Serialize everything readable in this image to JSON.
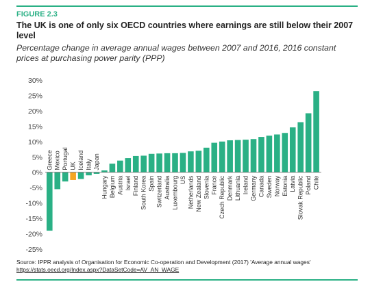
{
  "figure": {
    "label": "FIGURE 2.3",
    "title": "The UK is one of only six OECD countries where earnings are still below their 2007 level",
    "subtitle": "Percentage change in average annual wages between 2007 and 2016, 2016 constant prices at purchasing power parity (PPP)",
    "source": "Source: IPPR analysis of Organisation for Economic Co-operation and Development (2017) 'Average annual wages'",
    "source_link": "https://stats.oecd.org/Index.aspx?DataSetCode=AV_AN_WAGE"
  },
  "colors": {
    "accent": "#2ab085",
    "highlight": "#f5a623",
    "axis": "#555555"
  },
  "chart_data": {
    "type": "bar",
    "categories": [
      "Greece",
      "Mexico",
      "Portugal",
      "UK",
      "Iceland",
      "Italy",
      "Japan",
      "Hungary",
      "Belgium",
      "Austria",
      "Israel",
      "Finland",
      "South Korea",
      "Spain",
      "Switzerland",
      "Australia",
      "Luxembourg",
      "US",
      "Netherlands",
      "New Zealand",
      "Slovenia",
      "France",
      "Czech Republic",
      "Denmark",
      "Lithuania",
      "Ireland",
      "Germany",
      "Canada",
      "Sweden",
      "Norway",
      "Estonia",
      "Latvia",
      "Slovak Republic",
      "Poland",
      "Chile"
    ],
    "values": [
      -19,
      -5.5,
      -3,
      -2.5,
      -2.2,
      -1,
      -0.5,
      0.6,
      2.8,
      3.8,
      4.6,
      5.3,
      5.4,
      6.0,
      6.1,
      6.2,
      6.2,
      6.3,
      6.8,
      7.0,
      8.0,
      9.6,
      10.0,
      10.4,
      10.5,
      10.6,
      10.8,
      11.5,
      11.9,
      12.3,
      12.8,
      14.6,
      16.3,
      19.2,
      26.4
    ],
    "highlight_category": "UK",
    "yticks": [
      "30%",
      "25%",
      "20%",
      "15%",
      "10%",
      "5%",
      "0%",
      "-5%",
      "-10%",
      "-15%",
      "-20%",
      "-25%"
    ],
    "ylim": [
      -25,
      30
    ],
    "grid": false
  }
}
